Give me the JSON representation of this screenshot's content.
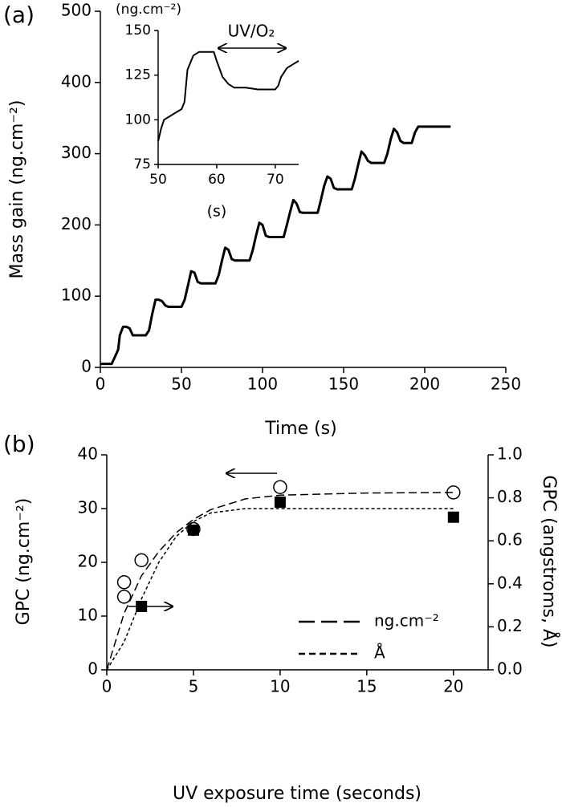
{
  "chart_data": [
    {
      "type": "line",
      "label": "(a)",
      "xlabel": "Time (s)",
      "ylabel": "Mass gain (ng.cm⁻²)",
      "xlim": [
        0,
        250
      ],
      "xticks": [
        0,
        50,
        100,
        150,
        200,
        250
      ],
      "ylim": [
        0,
        500
      ],
      "yticks": [
        0,
        100,
        200,
        300,
        400,
        500
      ],
      "series": [
        {
          "color": "#000000",
          "x": [
            0,
            7,
            9,
            11,
            12,
            14,
            16,
            18,
            20,
            28,
            30,
            32,
            34,
            36,
            38,
            40,
            42,
            50,
            52,
            54,
            56,
            58,
            60,
            62,
            71,
            73,
            75,
            77,
            79,
            81,
            83,
            92,
            94,
            96,
            98,
            100,
            102,
            104,
            113,
            115,
            117,
            119,
            121,
            123,
            125,
            134,
            136,
            138,
            140,
            142,
            144,
            146,
            155,
            157,
            159,
            161,
            163,
            165,
            167,
            175,
            177,
            179,
            181,
            183,
            185,
            187,
            192,
            194,
            196,
            200,
            216
          ],
          "values": [
            5,
            5,
            15,
            25,
            45,
            57,
            57,
            55,
            45,
            45,
            52,
            75,
            95,
            95,
            93,
            87,
            85,
            85,
            95,
            115,
            135,
            133,
            120,
            118,
            118,
            130,
            150,
            168,
            165,
            152,
            150,
            150,
            165,
            185,
            203,
            200,
            185,
            183,
            183,
            200,
            218,
            235,
            230,
            218,
            217,
            217,
            235,
            255,
            268,
            265,
            252,
            250,
            250,
            265,
            285,
            303,
            298,
            290,
            287,
            287,
            300,
            320,
            335,
            330,
            318,
            315,
            315,
            330,
            338,
            338,
            338
          ]
        }
      ]
    },
    {
      "type": "line",
      "xlabel": "(s)",
      "ylabel": "(ng.cm⁻²)",
      "annotation": "UV/O₂",
      "xlim": [
        50,
        74
      ],
      "xticks": [
        50,
        60,
        70
      ],
      "ylim": [
        75,
        150
      ],
      "yticks": [
        75,
        100,
        125,
        150
      ],
      "series": [
        {
          "color": "#000000",
          "x": [
            50,
            50.5,
            51,
            53,
            54,
            54.5,
            55,
            56,
            57,
            59.5,
            60,
            61,
            62,
            63,
            65,
            67,
            69,
            70,
            70.5,
            71,
            72,
            73,
            74
          ],
          "values": [
            88,
            95,
            100,
            104,
            106,
            110,
            128,
            136,
            138,
            138,
            133,
            124,
            120,
            118,
            118,
            117,
            117,
            117,
            119,
            124,
            129,
            131,
            133
          ]
        }
      ]
    },
    {
      "type": "scatter",
      "label": "(b)",
      "xlabel": "UV exposure time (seconds)",
      "ylabel": "GPC (ng.cm⁻²)",
      "y2label": "GPC (angstroms, Å)",
      "xlim": [
        0,
        22
      ],
      "xticks": [
        0,
        5,
        10,
        15,
        20
      ],
      "ylim": [
        0,
        40
      ],
      "yticks": [
        0,
        10,
        20,
        30,
        40
      ],
      "y2lim": [
        0,
        1
      ],
      "y2ticks": [
        {
          "value": 0,
          "label": "0.0"
        },
        0.2,
        0.4,
        0.6,
        0.8,
        {
          "value": 1,
          "label": "1.0"
        }
      ],
      "series": [
        {
          "marker": "open-circle",
          "color": "#000000",
          "x": [
            1,
            1,
            2,
            5,
            10,
            20
          ],
          "values": [
            16.3,
            13.6,
            20.4,
            26.2,
            34,
            33
          ]
        },
        {
          "marker": "filled-square",
          "color": "#000000",
          "axis": "y2",
          "x": [
            2,
            5,
            10,
            20
          ],
          "values": [
            0.295,
            0.65,
            0.78,
            0.71
          ]
        },
        {
          "name": "ng.cm⁻²",
          "dash": "long",
          "color": "#000000",
          "x": [
            0,
            1,
            2,
            3,
            4,
            5,
            6,
            8,
            10,
            15,
            20
          ],
          "values": [
            0,
            10.5,
            17.5,
            22,
            25.5,
            28,
            29.8,
            31.8,
            32.5,
            32.9,
            33
          ]
        },
        {
          "name": "Å",
          "dash": "short",
          "color": "#000000",
          "axis": "y2",
          "x": [
            0,
            1,
            2,
            3,
            4,
            5,
            6,
            8,
            10,
            20
          ],
          "values": [
            0,
            0.13,
            0.33,
            0.5,
            0.62,
            0.69,
            0.73,
            0.75,
            0.75,
            0.75
          ]
        }
      ]
    }
  ]
}
